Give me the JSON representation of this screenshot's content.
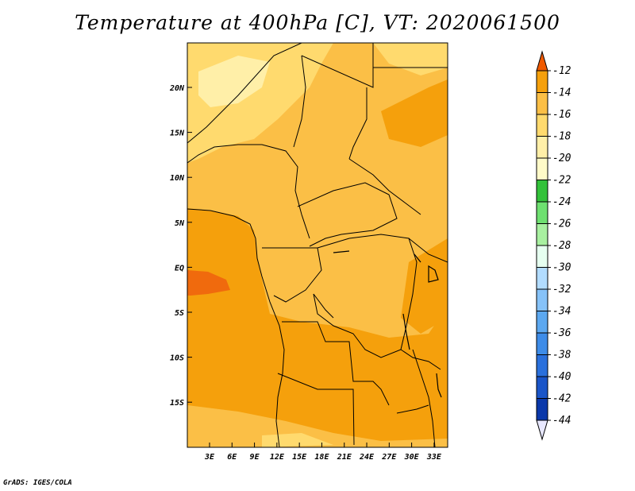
{
  "title": "Temperature at 400hPa [C], VT: 2020061500",
  "credit": "GrADS: IGES/COLA",
  "map": {
    "lat_labels": [
      "20N",
      "15N",
      "10N",
      "5N",
      "EQ",
      "5S",
      "10S",
      "15S"
    ],
    "lon_labels": [
      "3E",
      "6E",
      "9E",
      "12E",
      "15E",
      "18E",
      "21E",
      "24E",
      "27E",
      "30E",
      "33E"
    ],
    "lat_values": [
      20,
      15,
      10,
      5,
      0,
      -5,
      -10,
      -15
    ],
    "lon_values": [
      3,
      6,
      9,
      12,
      15,
      18,
      21,
      24,
      27,
      30,
      33
    ],
    "colors": {
      "c_m20_m18": "#ffe68c",
      "c_m18_m16": "#fbbf46",
      "c_m16_m14": "#f5a00c",
      "c_m14_m12": "#f06a0d",
      "c_m22_m20": "#fff2b0",
      "border": "#000000"
    }
  },
  "legend": {
    "levels": [
      "-12",
      "-14",
      "-16",
      "-18",
      "-20",
      "-22",
      "-24",
      "-26",
      "-28",
      "-30",
      "-32",
      "-34",
      "-36",
      "-38",
      "-40",
      "-42",
      "-44"
    ],
    "colors": [
      "#f05a00",
      "#f5a00c",
      "#fbbf46",
      "#ffda6e",
      "#ffefa8",
      "#fffac8",
      "#33c23a",
      "#6ee070",
      "#a8f0a0",
      "#e6fff0",
      "#b2dcff",
      "#86c2f8",
      "#5ca8f0",
      "#3e8ce8",
      "#2a70dc",
      "#1a55c8",
      "#0a38aa",
      "#0a1470",
      "#e8e8ff"
    ]
  }
}
